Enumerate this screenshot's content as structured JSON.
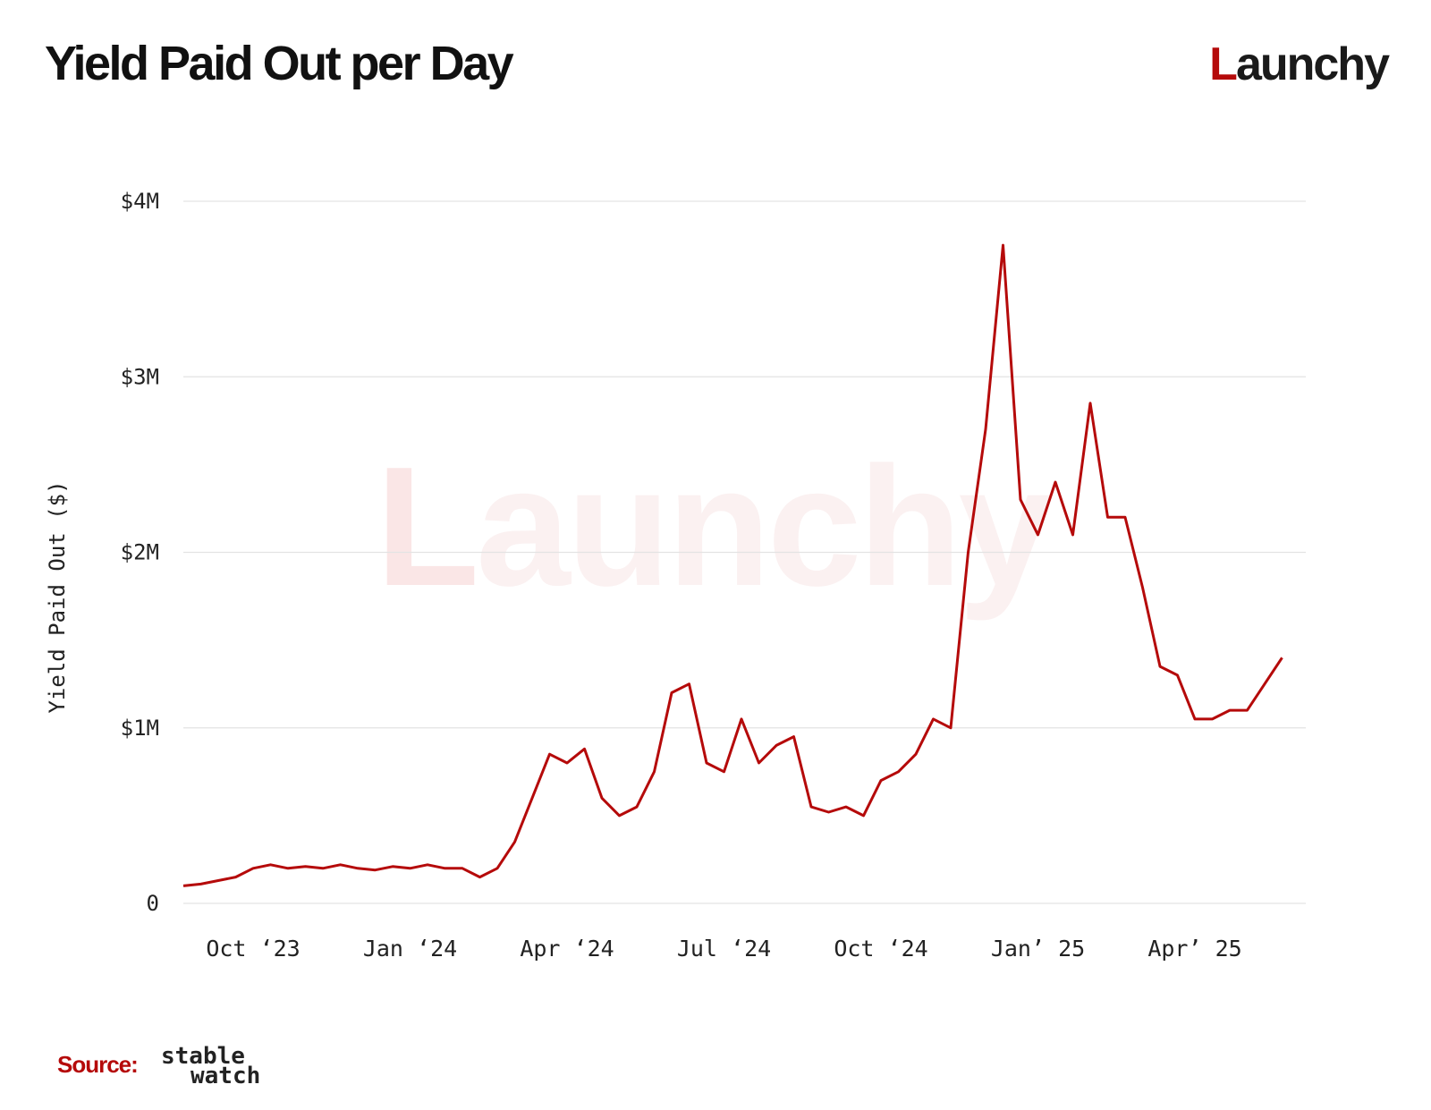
{
  "chart_data": {
    "type": "line",
    "title": "Yield Paid Out per Day",
    "brand": "Launchy",
    "y_label": "Yield Paid Out ($)",
    "source": {
      "label": "Source:",
      "name": [
        "stable",
        "watch"
      ]
    },
    "color": "#b50a0a",
    "grid": true,
    "ylim": [
      0,
      4000000
    ],
    "yticks": [
      0,
      {
        "value": 1000000,
        "label": "$1M"
      },
      {
        "value": 2000000,
        "label": "$2M"
      },
      {
        "value": 3000000,
        "label": "$3M"
      },
      {
        "value": 4000000,
        "label": "$4M"
      }
    ],
    "categories": [
      null,
      null,
      null,
      null,
      "Oct ‘23",
      null,
      null,
      null,
      null,
      null,
      null,
      null,
      null,
      "Jan ‘24",
      null,
      null,
      null,
      null,
      null,
      null,
      null,
      null,
      "Apr ‘24",
      null,
      null,
      null,
      null,
      null,
      null,
      null,
      null,
      "Jul ‘24",
      null,
      null,
      null,
      null,
      null,
      null,
      null,
      null,
      "Oct ‘24",
      null,
      null,
      null,
      null,
      null,
      null,
      null,
      null,
      "Jan’ 25",
      null,
      null,
      null,
      null,
      null,
      null,
      null,
      null,
      "Apr’ 25",
      null,
      null,
      null,
      null,
      null
    ],
    "values": [
      100000,
      110000,
      130000,
      150000,
      200000,
      220000,
      200000,
      210000,
      200000,
      220000,
      200000,
      190000,
      210000,
      200000,
      220000,
      200000,
      200000,
      150000,
      200000,
      350000,
      600000,
      850000,
      800000,
      880000,
      600000,
      500000,
      550000,
      750000,
      1200000,
      1250000,
      800000,
      750000,
      1050000,
      800000,
      900000,
      950000,
      550000,
      520000,
      550000,
      500000,
      700000,
      750000,
      850000,
      1050000,
      1000000,
      2000000,
      2700000,
      3750000,
      2300000,
      2100000,
      2400000,
      2100000,
      2850000,
      2200000,
      2200000,
      1800000,
      1350000,
      1300000,
      1050000,
      1050000,
      1100000,
      1100000,
      1250000,
      1400000
    ]
  }
}
